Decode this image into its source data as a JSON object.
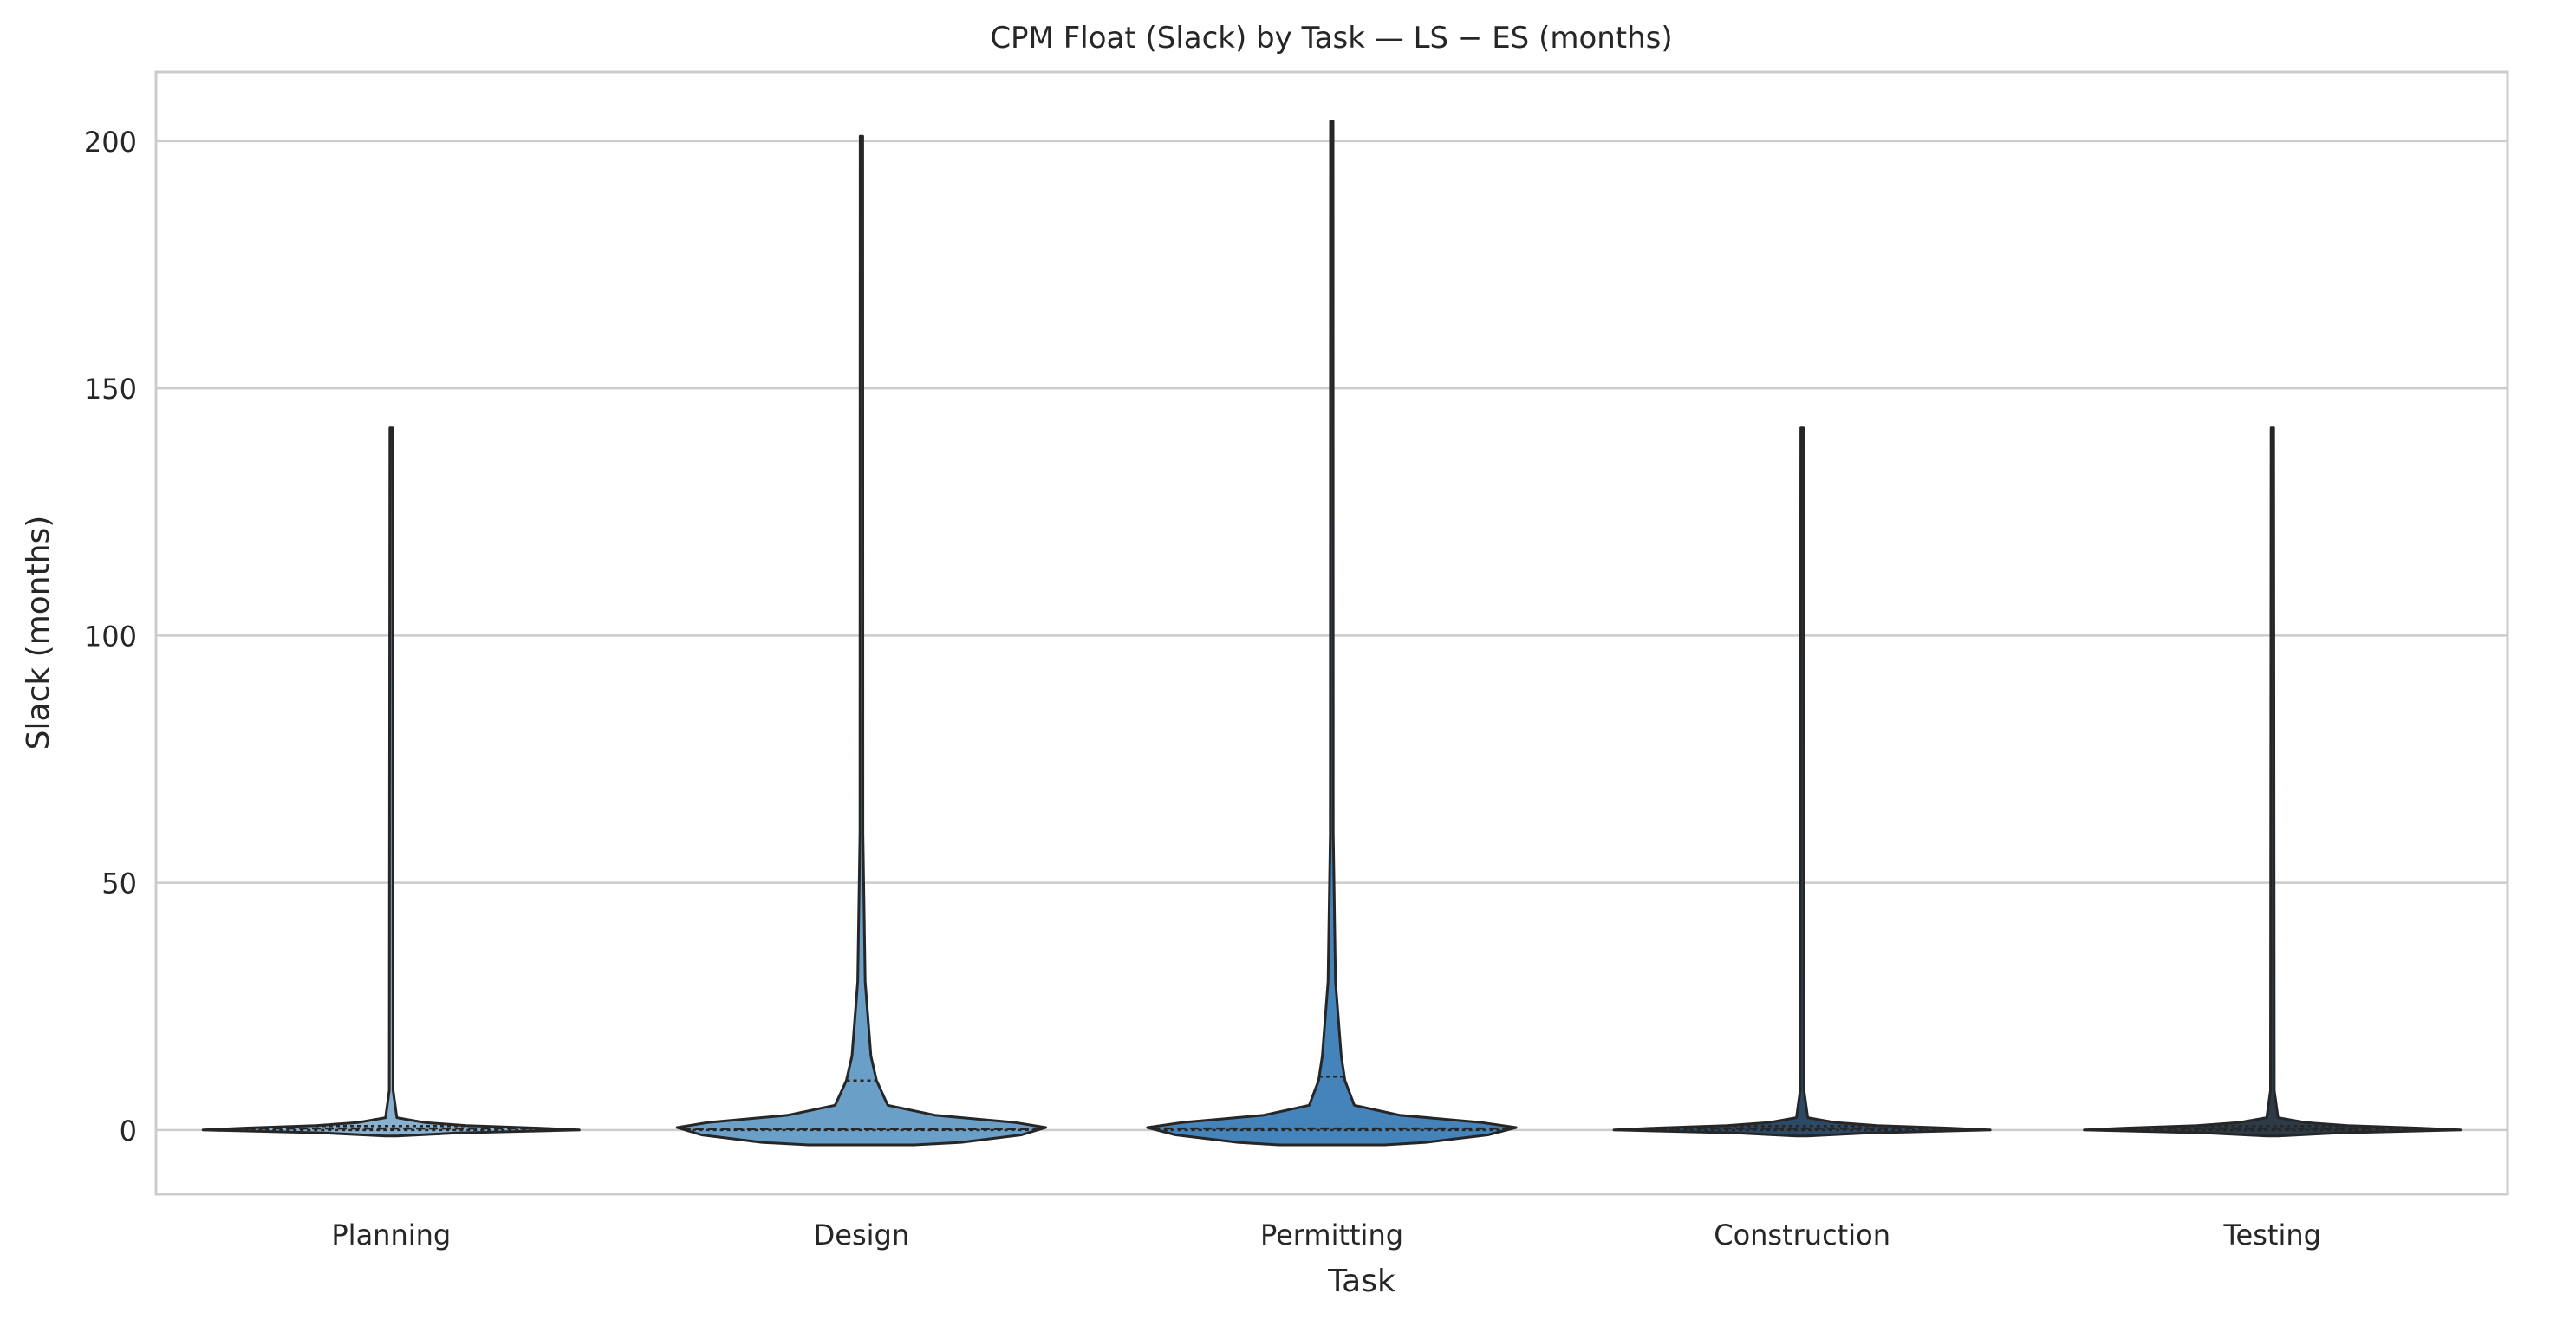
{
  "chart_data": {
    "type": "violin",
    "title": "CPM Float (Slack) by Task — LS − ES (months)",
    "xlabel": "Task",
    "ylabel": "Slack (months)",
    "ylim": [
      -13,
      214
    ],
    "yticks": [
      0,
      50,
      100,
      150,
      200
    ],
    "grid": "horizontal",
    "categories": [
      "Planning",
      "Design",
      "Permitting",
      "Construction",
      "Testing"
    ],
    "colors": [
      "#8ab0cf",
      "#6a9fc8",
      "#4584bb",
      "#2c4a66",
      "#2d3a47"
    ],
    "violins": [
      {
        "name": "Planning",
        "max": 142,
        "min": -1.2,
        "quartile_lines": [
          0,
          0.3,
          0.8
        ],
        "profile": [
          [
            -1.2,
            0.03
          ],
          [
            -0.6,
            0.35
          ],
          [
            0,
            1.0
          ],
          [
            0.4,
            0.78
          ],
          [
            0.9,
            0.4
          ],
          [
            1.5,
            0.18
          ],
          [
            2.5,
            0.03
          ],
          [
            8,
            0.01
          ],
          [
            142,
            0.004
          ]
        ]
      },
      {
        "name": "Design",
        "max": 201,
        "min": -3,
        "quartile_lines": [
          0,
          0.2,
          10
        ],
        "profile": [
          [
            -3,
            0.28
          ],
          [
            -2.5,
            0.53
          ],
          [
            -1,
            0.85
          ],
          [
            0.5,
            0.98
          ],
          [
            1.5,
            0.82
          ],
          [
            3,
            0.39
          ],
          [
            5,
            0.14
          ],
          [
            10,
            0.08
          ],
          [
            15,
            0.05
          ],
          [
            30,
            0.02
          ],
          [
            60,
            0.008
          ],
          [
            201,
            0.004
          ]
        ]
      },
      {
        "name": "Permitting",
        "max": 204,
        "min": -3,
        "quartile_lines": [
          0,
          0.3,
          10.8
        ],
        "profile": [
          [
            -3,
            0.28
          ],
          [
            -2.5,
            0.5
          ],
          [
            -1,
            0.83
          ],
          [
            0.5,
            0.98
          ],
          [
            1.5,
            0.8
          ],
          [
            3,
            0.36
          ],
          [
            5,
            0.12
          ],
          [
            10,
            0.07
          ],
          [
            15,
            0.05
          ],
          [
            30,
            0.02
          ],
          [
            60,
            0.008
          ],
          [
            204,
            0.004
          ]
        ]
      },
      {
        "name": "Construction",
        "max": 142,
        "min": -1.2,
        "quartile_lines": [
          0,
          0.3,
          0.8
        ],
        "profile": [
          [
            -1.2,
            0.03
          ],
          [
            -0.6,
            0.35
          ],
          [
            0,
            1.0
          ],
          [
            0.4,
            0.78
          ],
          [
            0.9,
            0.4
          ],
          [
            1.5,
            0.18
          ],
          [
            2.5,
            0.03
          ],
          [
            8,
            0.01
          ],
          [
            142,
            0.004
          ]
        ]
      },
      {
        "name": "Testing",
        "max": 142,
        "min": -1.2,
        "quartile_lines": [
          0,
          0.3,
          0.8
        ],
        "profile": [
          [
            -1.2,
            0.03
          ],
          [
            -0.6,
            0.35
          ],
          [
            0,
            1.0
          ],
          [
            0.4,
            0.78
          ],
          [
            0.9,
            0.4
          ],
          [
            1.5,
            0.18
          ],
          [
            2.5,
            0.03
          ],
          [
            8,
            0.01
          ],
          [
            142,
            0.004
          ]
        ]
      }
    ]
  }
}
